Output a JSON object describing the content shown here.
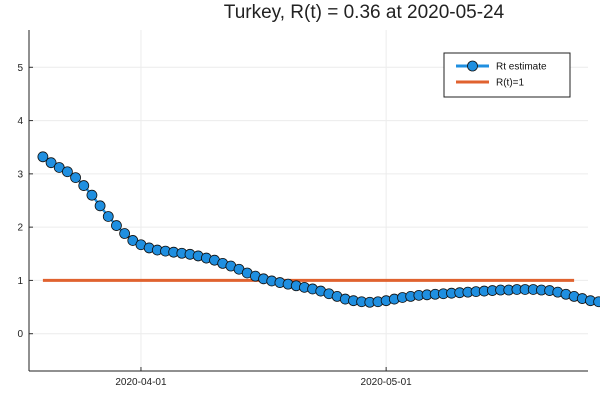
{
  "chart_data": {
    "type": "line",
    "title": "Turkey, R(t) = 0.36 at 2020-05-24",
    "xlabel": "",
    "ylabel": "",
    "x_start_date": "2020-03-20",
    "x_end_date": "2020-05-24",
    "x_ticks": [
      "2020-04-01",
      "2020-05-01"
    ],
    "ylim": [
      -0.7,
      5.7
    ],
    "y_ticks": [
      "0",
      "1",
      "2",
      "3",
      "4",
      "5"
    ],
    "grid": true,
    "legend_position": "top-right",
    "series": [
      {
        "name": "Rt estimate",
        "color": "#1f8fe0",
        "marker": "circle",
        "y": [
          3.32,
          3.21,
          3.12,
          3.04,
          2.93,
          2.78,
          2.6,
          2.4,
          2.2,
          2.03,
          1.88,
          1.75,
          1.67,
          1.61,
          1.57,
          1.55,
          1.53,
          1.51,
          1.49,
          1.46,
          1.42,
          1.38,
          1.32,
          1.27,
          1.21,
          1.14,
          1.08,
          1.03,
          0.99,
          0.96,
          0.93,
          0.9,
          0.87,
          0.84,
          0.8,
          0.75,
          0.7,
          0.65,
          0.62,
          0.6,
          0.59,
          0.6,
          0.62,
          0.65,
          0.68,
          0.7,
          0.72,
          0.73,
          0.74,
          0.75,
          0.76,
          0.77,
          0.78,
          0.79,
          0.8,
          0.81,
          0.82,
          0.82,
          0.83,
          0.83,
          0.83,
          0.82,
          0.81,
          0.78,
          0.74,
          0.7,
          0.66,
          0.62,
          0.6,
          0.58,
          0.57,
          0.55,
          0.52,
          0.46,
          0.36
        ]
      },
      {
        "name": "R(t)=1",
        "color": "#e0622f",
        "y_constant": 1
      }
    ]
  }
}
